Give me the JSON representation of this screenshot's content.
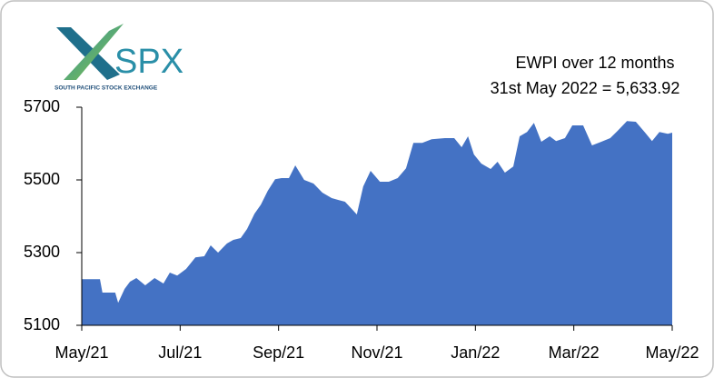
{
  "logo": {
    "name": "SPX",
    "tagline": "SOUTH PACIFIC STOCK EXCHANGE"
  },
  "chart_data": {
    "type": "area",
    "title": "EWPI over 12 months",
    "subtitle": "31st May 2022 = 5,633.92",
    "x": [
      0,
      0.37,
      0.42,
      0.68,
      0.74,
      0.87,
      0.98,
      1.11,
      1.29,
      1.48,
      1.66,
      1.79,
      1.94,
      2.12,
      2.31,
      2.49,
      2.62,
      2.77,
      2.95,
      3.08,
      3.23,
      3.36,
      3.51,
      3.64,
      3.78,
      3.93,
      4.06,
      4.21,
      4.34,
      4.52,
      4.71,
      4.89,
      5.08,
      5.21,
      5.35,
      5.59,
      5.72,
      5.87,
      6.06,
      6.24,
      6.42,
      6.59,
      6.74,
      6.92,
      7.11,
      7.38,
      7.57,
      7.72,
      7.85,
      7.97,
      8.12,
      8.31,
      8.45,
      8.6,
      8.77,
      8.9,
      9.05,
      9.19,
      9.34,
      9.51,
      9.64,
      9.82,
      9.97,
      10.19,
      10.37,
      10.56,
      10.74,
      10.89,
      11.08,
      11.26,
      11.45,
      11.59,
      11.74,
      11.91,
      12
    ],
    "values": [
      5227,
      5227,
      5190,
      5190,
      5162,
      5200,
      5220,
      5230,
      5210,
      5230,
      5215,
      5245,
      5237,
      5255,
      5287,
      5290,
      5320,
      5300,
      5325,
      5335,
      5340,
      5365,
      5407,
      5432,
      5470,
      5502,
      5505,
      5505,
      5540,
      5500,
      5490,
      5465,
      5450,
      5445,
      5440,
      5405,
      5482,
      5525,
      5495,
      5495,
      5505,
      5532,
      5602,
      5602,
      5612,
      5615,
      5615,
      5590,
      5620,
      5570,
      5545,
      5530,
      5550,
      5520,
      5537,
      5620,
      5632,
      5657,
      5605,
      5620,
      5607,
      5615,
      5650,
      5650,
      5595,
      5605,
      5615,
      5635,
      5662,
      5660,
      5630,
      5607,
      5632,
      5627,
      5630
    ],
    "color": "#4472c4",
    "xlim": [
      0,
      12
    ],
    "xticks": [
      {
        "value": 0,
        "label": "May/21"
      },
      {
        "value": 2,
        "label": "Jul/21"
      },
      {
        "value": 4,
        "label": "Sep/21"
      },
      {
        "value": 6,
        "label": "Nov/21"
      },
      {
        "value": 8,
        "label": "Jan/22"
      },
      {
        "value": 10,
        "label": "Mar/22"
      },
      {
        "value": 12,
        "label": "May/22"
      }
    ],
    "ylim": [
      5100,
      5700
    ],
    "yticks": [
      5100,
      5300,
      5500,
      5700
    ],
    "grid": false
  }
}
